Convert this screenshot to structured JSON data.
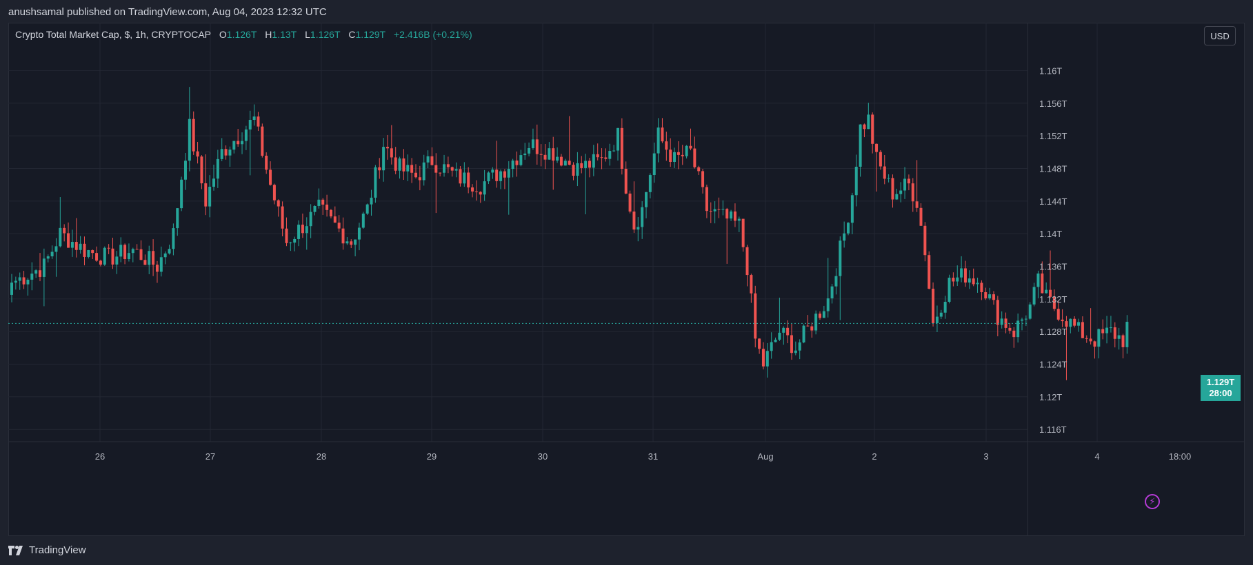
{
  "header": {
    "published_line": "anushsamal published on TradingView.com, Aug 04, 2023 12:32 UTC"
  },
  "legend": {
    "symbol_line": "Crypto Total Market Cap, $, 1h, CRYPTOCAP",
    "open_label": "O",
    "open_value": "1.126T",
    "high_label": "H",
    "high_value": "1.13T",
    "low_label": "L",
    "low_value": "1.126T",
    "close_label": "C",
    "close_value": "1.129T",
    "change": "+2.416B (+0.21%)"
  },
  "currency_button": "USD",
  "price_tag": {
    "price": "1.129T",
    "countdown": "28:00"
  },
  "footer": {
    "brand": "TradingView"
  },
  "colors": {
    "up": "#26a69a",
    "down": "#ef5350",
    "background": "#161a25",
    "grid": "#232733",
    "accent_purple": "#b53bd6"
  },
  "icons": [
    "tradingview-logo-icon",
    "lightning-icon"
  ],
  "chart_data": {
    "type": "candlestick",
    "title": "Crypto Total Market Cap, $, 1h, CRYPTOCAP",
    "x_ticks": [
      "26",
      "27",
      "28",
      "29",
      "30",
      "31",
      "Aug",
      "2",
      "3",
      "4",
      "18:00"
    ],
    "y_ticks": [
      "1.116T",
      "1.12T",
      "1.124T",
      "1.128T",
      "1.132T",
      "1.136T",
      "1.14T",
      "1.144T",
      "1.148T",
      "1.152T",
      "1.156T",
      "1.16T"
    ],
    "y_tick_values": [
      1.116,
      1.12,
      1.124,
      1.128,
      1.132,
      1.136,
      1.14,
      1.144,
      1.148,
      1.152,
      1.156,
      1.16
    ],
    "ylim": [
      1.1145,
      1.1635
    ],
    "unit": "T",
    "current_price": 1.129,
    "grid": true,
    "anchors": [
      [
        0,
        1.134
      ],
      [
        8,
        1.136
      ],
      [
        12,
        1.14
      ],
      [
        18,
        1.138
      ],
      [
        24,
        1.137
      ],
      [
        30,
        1.138
      ],
      [
        36,
        1.136
      ],
      [
        40,
        1.14
      ],
      [
        42,
        1.147
      ],
      [
        44,
        1.153
      ],
      [
        48,
        1.144
      ],
      [
        52,
        1.15
      ],
      [
        56,
        1.152
      ],
      [
        60,
        1.154
      ],
      [
        64,
        1.146
      ],
      [
        68,
        1.139
      ],
      [
        72,
        1.141
      ],
      [
        76,
        1.143
      ],
      [
        80,
        1.141
      ],
      [
        84,
        1.139
      ],
      [
        88,
        1.143
      ],
      [
        92,
        1.151
      ],
      [
        96,
        1.148
      ],
      [
        100,
        1.147
      ],
      [
        104,
        1.149
      ],
      [
        110,
        1.147
      ],
      [
        116,
        1.146
      ],
      [
        122,
        1.148
      ],
      [
        128,
        1.151
      ],
      [
        134,
        1.15
      ],
      [
        140,
        1.148
      ],
      [
        146,
        1.149
      ],
      [
        150,
        1.152
      ],
      [
        152,
        1.146
      ],
      [
        154,
        1.141
      ],
      [
        156,
        1.143
      ],
      [
        160,
        1.152
      ],
      [
        164,
        1.149
      ],
      [
        168,
        1.15
      ],
      [
        172,
        1.143
      ],
      [
        176,
        1.142
      ],
      [
        180,
        1.141
      ],
      [
        182,
        1.136
      ],
      [
        184,
        1.127
      ],
      [
        186,
        1.124
      ],
      [
        190,
        1.128
      ],
      [
        194,
        1.126
      ],
      [
        198,
        1.129
      ],
      [
        202,
        1.132
      ],
      [
        206,
        1.14
      ],
      [
        208,
        1.145
      ],
      [
        210,
        1.153
      ],
      [
        212,
        1.154
      ],
      [
        214,
        1.149
      ],
      [
        218,
        1.145
      ],
      [
        222,
        1.146
      ],
      [
        224,
        1.144
      ],
      [
        226,
        1.138
      ],
      [
        228,
        1.129
      ],
      [
        232,
        1.134
      ],
      [
        236,
        1.135
      ],
      [
        240,
        1.134
      ],
      [
        244,
        1.13
      ],
      [
        248,
        1.128
      ],
      [
        252,
        1.131
      ],
      [
        254,
        1.134
      ],
      [
        256,
        1.132
      ],
      [
        260,
        1.13
      ],
      [
        264,
        1.128
      ],
      [
        268,
        1.127
      ],
      [
        272,
        1.128
      ],
      [
        275,
        1.127
      ],
      [
        276,
        1.1292
      ]
    ]
  }
}
